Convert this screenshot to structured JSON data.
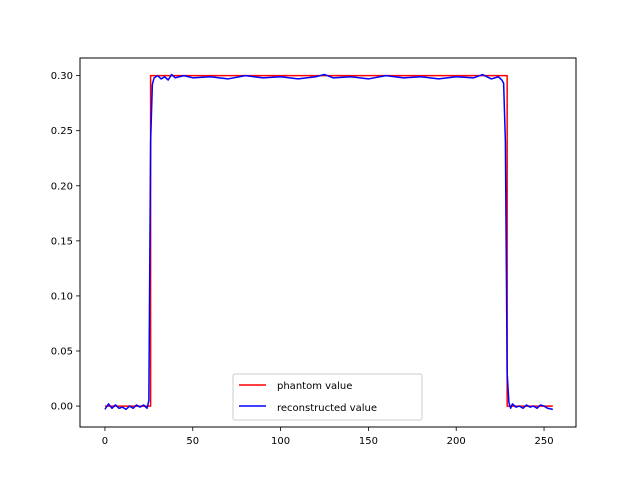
{
  "chart_data": {
    "type": "line",
    "title": "",
    "xlabel": "",
    "ylabel": "",
    "xlim": [
      -14.2,
      268.2
    ],
    "ylim": [
      -0.019,
      0.316
    ],
    "xticks": [
      0,
      50,
      100,
      150,
      200,
      250
    ],
    "xtick_labels": [
      "0",
      "50",
      "100",
      "150",
      "200",
      "250"
    ],
    "yticks": [
      0.0,
      0.05,
      0.1,
      0.15,
      0.2,
      0.25,
      0.3
    ],
    "ytick_labels": [
      "0.00",
      "0.05",
      "0.10",
      "0.15",
      "0.20",
      "0.25",
      "0.30"
    ],
    "grid": false,
    "legend_position": "lower center",
    "series": [
      {
        "name": "phantom value",
        "color": "#ff0000",
        "x": [
          0,
          26,
          26,
          229,
          229,
          255
        ],
        "y": [
          0.0,
          0.0,
          0.3,
          0.3,
          0.0,
          0.0
        ]
      },
      {
        "name": "reconstructed value",
        "color": "#0000ff",
        "x": [
          0,
          2,
          4,
          6,
          8,
          10,
          12,
          14,
          16,
          18,
          20,
          22,
          24,
          25,
          26,
          27,
          28,
          30,
          32,
          34,
          36,
          38,
          40,
          45,
          50,
          60,
          70,
          80,
          90,
          100,
          110,
          120,
          125,
          130,
          140,
          150,
          160,
          170,
          180,
          190,
          200,
          210,
          215,
          220,
          224,
          226,
          227,
          228,
          229,
          230,
          231,
          232,
          234,
          236,
          238,
          240,
          242,
          244,
          246,
          248,
          250,
          252,
          255
        ],
        "y": [
          -0.003,
          0.002,
          -0.002,
          0.001,
          -0.002,
          -0.001,
          -0.003,
          0.0,
          -0.002,
          0.001,
          -0.001,
          0.001,
          -0.002,
          0.005,
          0.24,
          0.292,
          0.298,
          0.3,
          0.297,
          0.299,
          0.296,
          0.301,
          0.298,
          0.3,
          0.298,
          0.299,
          0.297,
          0.3,
          0.298,
          0.299,
          0.297,
          0.299,
          0.301,
          0.298,
          0.299,
          0.297,
          0.3,
          0.298,
          0.299,
          0.297,
          0.299,
          0.298,
          0.301,
          0.297,
          0.299,
          0.296,
          0.293,
          0.24,
          0.03,
          0.003,
          -0.002,
          0.002,
          -0.001,
          0.0,
          -0.002,
          0.001,
          -0.001,
          0.0,
          -0.002,
          0.001,
          0.0,
          -0.002,
          -0.003
        ]
      }
    ]
  }
}
